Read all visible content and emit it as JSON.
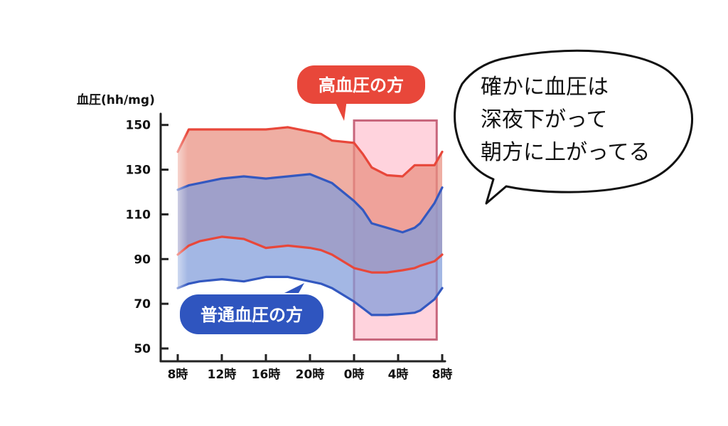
{
  "chart_data": {
    "type": "area",
    "ylabel": "血圧(hh/mg)",
    "ylim": [
      50,
      155
    ],
    "y_ticks": [
      "150",
      "130",
      "110",
      "90",
      "70",
      "50"
    ],
    "y_tick_values": [
      150,
      130,
      110,
      90,
      70,
      50
    ],
    "x_ticks": [
      "8時",
      "12時",
      "16時",
      "20時",
      "0時",
      "4時",
      "8時"
    ],
    "x_tick_hours": [
      0,
      4,
      8,
      12,
      16,
      20,
      24
    ],
    "series": [
      {
        "name": "高血圧の方",
        "color": "#e8473a",
        "fill": "#e98f7f",
        "x": [
          0,
          1,
          2,
          4,
          6,
          8,
          10,
          12,
          13,
          14,
          16,
          16.8,
          17.6,
          19,
          20.4,
          21.5,
          22,
          23.3,
          24
        ],
        "upper": [
          138,
          148,
          148,
          148,
          148,
          148,
          149,
          147,
          146,
          143,
          142,
          137,
          131,
          127.5,
          127,
          132,
          132,
          132,
          138
        ],
        "lower": [
          92,
          96,
          98,
          100,
          99,
          95,
          96,
          95,
          94,
          92,
          86,
          85,
          84,
          84,
          85,
          86,
          87,
          89,
          92
        ]
      },
      {
        "name": "普通血圧の方",
        "color": "#3358c0",
        "fill": "#7f9bd9",
        "x": [
          0,
          1,
          2,
          4,
          6,
          8,
          10,
          12,
          13,
          14,
          16,
          16.8,
          17.6,
          19,
          20.4,
          21.5,
          22,
          23.3,
          24
        ],
        "upper": [
          121,
          123,
          124,
          126,
          127,
          126,
          127,
          128,
          126,
          124,
          116,
          112,
          106,
          104,
          102,
          104,
          106,
          115,
          122
        ],
        "lower": [
          77,
          79,
          80,
          81,
          80,
          82,
          82,
          80,
          79,
          77,
          71,
          68,
          65,
          65,
          65.5,
          66,
          67,
          72,
          77
        ]
      }
    ],
    "highlight_range": {
      "x": [
        16,
        23.5
      ],
      "y": [
        54,
        152
      ]
    },
    "colors": {
      "highlight_fill": "#ffd3dd",
      "highlight_stroke": "#c7657b",
      "axis": "#222222"
    }
  },
  "labels": {
    "hypertension_bubble": "高血圧の方",
    "normal_bubble": "普通血圧の方",
    "thought_lines": [
      "確かに血圧は",
      "深夜下がって",
      "朝方に上がってる"
    ]
  }
}
